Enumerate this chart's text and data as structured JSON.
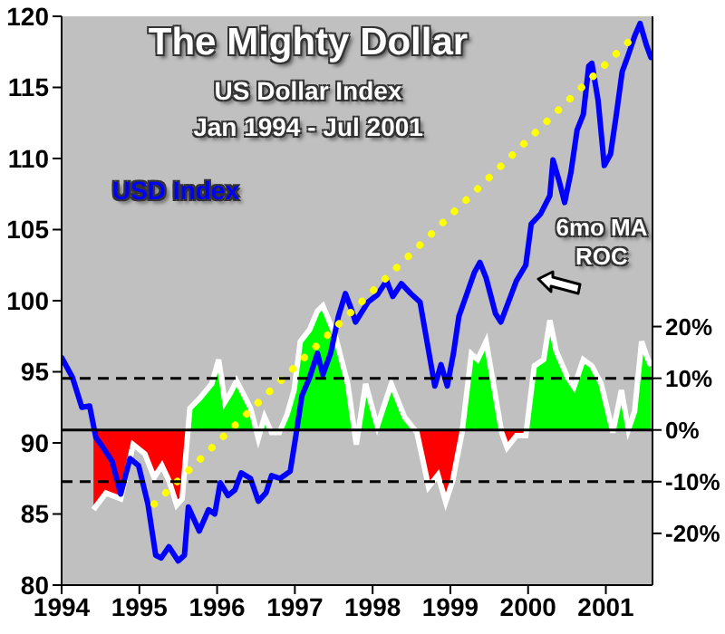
{
  "chart_data": {
    "type": "line",
    "title": "The Mighty Dollar",
    "subtitle": "US Dollar Index\nJan 1994 - Jul 2001",
    "xlim": [
      1994,
      2001.6
    ],
    "xticks": [
      1994,
      1995,
      1996,
      1997,
      1998,
      1999,
      2000,
      2001
    ],
    "ylim": [
      80,
      120
    ],
    "yticks": [
      80,
      85,
      90,
      95,
      100,
      105,
      110,
      115,
      120
    ],
    "y2lim": [
      -30,
      80
    ],
    "y2ticks": [
      {
        "value": -20,
        "label": "-20%"
      },
      {
        "value": -10,
        "label": "-10%"
      },
      {
        "value": 0,
        "label": "0%"
      },
      {
        "value": 10,
        "label": "10%"
      },
      {
        "value": 20,
        "label": "20%"
      }
    ],
    "grid": false,
    "marker": "none",
    "ref_lines": [
      {
        "axis": "y2",
        "value": 10,
        "color": "#000000",
        "line_style": "dashed"
      },
      {
        "axis": "y2",
        "value": -10,
        "color": "#000000",
        "line_style": "dashed"
      },
      {
        "axis": "y2",
        "value": 0,
        "color": "#000000",
        "line_style": "solid"
      }
    ],
    "series": [
      {
        "name": "6mo MA ROC",
        "type": "area",
        "axis": "y2",
        "color": "#00ff00",
        "x": [
          1994.41,
          1994.57,
          1994.76,
          1994.92,
          1995.07,
          1995.19,
          1995.29,
          1995.38,
          1995.48,
          1995.55,
          1995.65,
          1995.77,
          1995.93,
          1996.02,
          1996.1,
          1996.17,
          1996.25,
          1996.35,
          1996.43,
          1996.53,
          1996.61,
          1996.7,
          1996.8,
          1996.9,
          1996.99,
          1997.07,
          1997.19,
          1997.29,
          1997.36,
          1997.52,
          1997.68,
          1997.79,
          1997.91,
          1998.06,
          1998.24,
          1998.41,
          1998.57,
          1998.72,
          1998.84,
          1998.94,
          1999.03,
          1999.15,
          1999.27,
          1999.35,
          1999.46,
          1999.54,
          1999.66,
          1999.73,
          1999.85,
          1999.97,
          2000.08,
          2000.2,
          2000.28,
          2000.36,
          2000.51,
          2000.59,
          2000.71,
          2000.82,
          2000.94,
          2001.09,
          2001.2,
          2001.29,
          2001.37,
          2001.46,
          2001.53,
          2001.58
        ],
        "values": [
          -15.4,
          -12.2,
          -13.3,
          -2.8,
          -4.6,
          -9.2,
          -6.9,
          -9.8,
          -14.5,
          -13.3,
          4.2,
          6.0,
          8.9,
          13.6,
          5.4,
          7.1,
          9.5,
          6.6,
          4.2,
          -1.6,
          2.5,
          -0.5,
          -0.5,
          3.0,
          7.7,
          17.1,
          19.4,
          23,
          24,
          18.2,
          8.9,
          -2.8,
          8.9,
          0.7,
          8.9,
          2.5,
          -0.5,
          -11.0,
          -8.7,
          -13.9,
          -9.8,
          -0.5,
          14.7,
          13.6,
          17.1,
          10.1,
          -0.5,
          -3.4,
          -1.1,
          -1.1,
          12.4,
          13.6,
          21.2,
          15.3,
          10.1,
          8.3,
          13.6,
          12.4,
          8.9,
          -0.5,
          7.7,
          0.1,
          3.6,
          17.1,
          14.1,
          12.4
        ]
      },
      {
        "name": "USD Index",
        "color": "#0000ff",
        "x": [
          1994.0,
          1994.14,
          1994.26,
          1994.36,
          1994.44,
          1994.53,
          1994.65,
          1994.76,
          1994.88,
          1994.99,
          1995.11,
          1995.21,
          1995.28,
          1995.38,
          1995.5,
          1995.58,
          1995.63,
          1995.77,
          1995.89,
          1995.97,
          1996.04,
          1996.14,
          1996.23,
          1996.31,
          1996.43,
          1996.53,
          1996.63,
          1996.7,
          1996.81,
          1996.94,
          1997.01,
          1997.09,
          1997.19,
          1997.29,
          1997.36,
          1997.46,
          1997.56,
          1997.65,
          1997.72,
          1997.78,
          1997.94,
          1998.06,
          1998.18,
          1998.26,
          1998.37,
          1998.49,
          1998.61,
          1998.8,
          1998.88,
          1998.96,
          1999.04,
          1999.11,
          1999.31,
          1999.38,
          1999.46,
          1999.58,
          1999.65,
          1999.85,
          1999.97,
          2000.04,
          2000.16,
          2000.28,
          2000.32,
          2000.4,
          2000.47,
          2000.55,
          2000.63,
          2000.71,
          2000.78,
          2000.82,
          2000.9,
          2000.98,
          2001.06,
          2001.13,
          2001.21,
          2001.29,
          2001.37,
          2001.44,
          2001.52,
          2001.58
        ],
        "values": [
          96.0,
          94.6,
          92.5,
          92.6,
          90.4,
          89.7,
          88.7,
          86.4,
          88.9,
          88.4,
          85.7,
          82.1,
          81.9,
          82.7,
          81.7,
          82.1,
          85.5,
          83.8,
          85.3,
          85.0,
          87.2,
          86.3,
          86.7,
          87.9,
          87.5,
          85.9,
          86.5,
          87.7,
          87.5,
          88.0,
          90.4,
          93.3,
          94.6,
          96.3,
          94.8,
          96.3,
          98.9,
          100.5,
          99.5,
          98.5,
          99.9,
          100.4,
          101.4,
          100.3,
          101.2,
          100.5,
          99.9,
          94.0,
          95.5,
          94.0,
          96.3,
          98.9,
          102.0,
          102.7,
          101.6,
          99.1,
          98.5,
          101.4,
          102.5,
          105.4,
          106.1,
          107.4,
          109.9,
          108.4,
          106.9,
          109.0,
          112.0,
          113.1,
          116.5,
          116.7,
          114.1,
          109.5,
          110.3,
          112.9,
          116.1,
          117.3,
          118.6,
          119.5,
          118.0,
          117.1
        ]
      },
      {
        "color": "#ffff00",
        "line_style": "dotted",
        "x": [
          1995.19,
          2001.29
        ],
        "values": [
          85.7,
          118.2
        ]
      }
    ]
  }
}
